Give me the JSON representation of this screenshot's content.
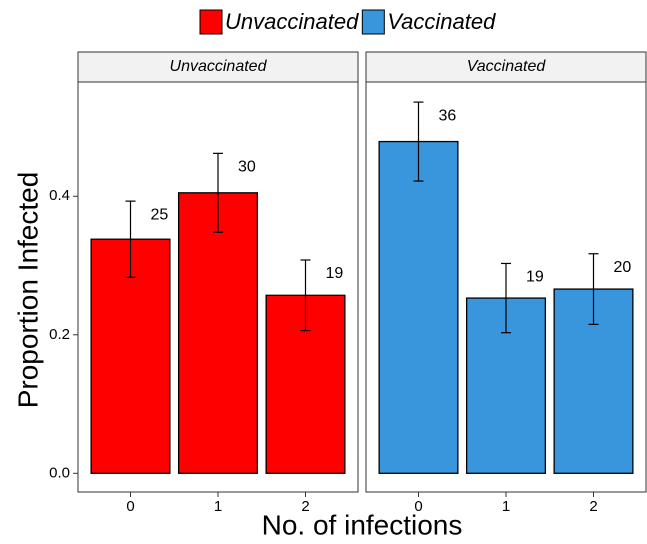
{
  "chart_data": {
    "type": "bar",
    "xlabel": "No. of infections",
    "ylabel": "Proportion Infected",
    "legend_position": "top",
    "ylim": [
      -0.027,
      0.565
    ],
    "yticks": [
      {
        "value": 0,
        "label": "0.0"
      },
      {
        "value": 0.2,
        "label": "0.2"
      },
      {
        "value": 0.4,
        "label": "0.4"
      }
    ],
    "categories": [
      "0",
      "1",
      "2"
    ],
    "series": [
      {
        "name": "Unvaccinated",
        "color": "#ff0000",
        "values": [
          0.338,
          0.405,
          0.257
        ],
        "errors": [
          0.055,
          0.057,
          0.051
        ],
        "counts": [
          25,
          30,
          19
        ]
      },
      {
        "name": "Vaccinated",
        "color": "#3a96dc",
        "values": [
          0.479,
          0.253,
          0.266
        ],
        "errors": [
          0.057,
          0.05,
          0.051
        ],
        "counts": [
          36,
          19,
          20
        ]
      }
    ]
  }
}
